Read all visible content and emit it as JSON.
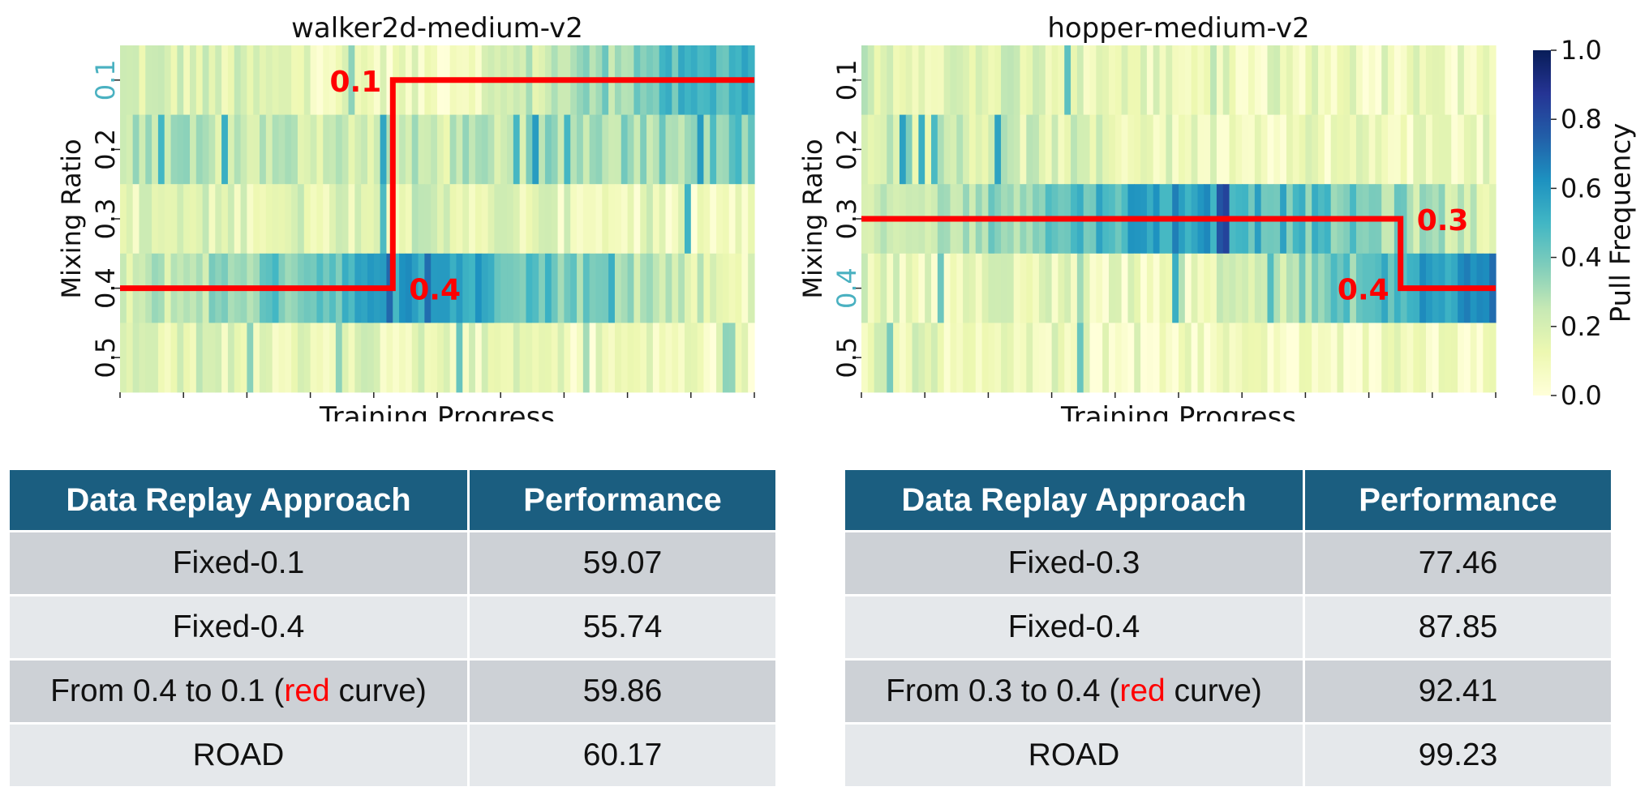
{
  "chart_data": [
    {
      "type": "heatmap",
      "title": "walker2d-medium-v2",
      "xlabel": "Training Progress",
      "ylabel": "Mixing Ratio",
      "rows": [
        "0.1",
        "0.2",
        "0.3",
        "0.4",
        "0.5"
      ],
      "highlighted_rows": [
        "0.1"
      ],
      "n_columns": 100,
      "row_means": [
        0.25,
        0.32,
        0.12,
        0.33,
        0.12
      ],
      "row_profiles": [
        [
          0.2,
          0.08,
          0.55
        ],
        [
          0.25,
          0.22,
          0.4
        ],
        [
          0.15,
          0.18,
          0.05
        ],
        [
          0.2,
          0.6,
          0.12
        ],
        [
          0.18,
          0.13,
          0.08
        ]
      ],
      "overlay_line": {
        "color": "#ff0000",
        "segments": [
          {
            "from": 0.0,
            "to": 0.43,
            "row": "0.4",
            "label": "0.4"
          },
          {
            "from": 0.43,
            "to": 1.0,
            "row": "0.1",
            "label": "0.1"
          }
        ]
      }
    },
    {
      "type": "heatmap",
      "title": "hopper-medium-v2",
      "xlabel": "Training Progress",
      "ylabel": "Mixing Ratio",
      "rows": [
        "0.1",
        "0.2",
        "0.3",
        "0.4",
        "0.5"
      ],
      "highlighted_rows": [
        "0.4"
      ],
      "n_columns": 100,
      "row_means": [
        0.15,
        0.15,
        0.45,
        0.18,
        0.1
      ],
      "row_profiles": [
        [
          0.2,
          0.12,
          0.1
        ],
        [
          0.25,
          0.12,
          0.1
        ],
        [
          0.15,
          0.6,
          0.2
        ],
        [
          0.15,
          0.1,
          0.65
        ],
        [
          0.15,
          0.08,
          0.06
        ]
      ],
      "overlay_line": {
        "color": "#ff0000",
        "segments": [
          {
            "from": 0.0,
            "to": 0.85,
            "row": "0.3",
            "label": "0.3"
          },
          {
            "from": 0.85,
            "to": 1.0,
            "row": "0.4",
            "label": "0.4"
          }
        ]
      }
    }
  ],
  "colorbar": {
    "label": "Pull Frequency",
    "ticks": [
      "0.0",
      "0.2",
      "0.4",
      "0.6",
      "0.8",
      "1.0"
    ],
    "min": 0.0,
    "max": 1.0,
    "colors": [
      "#ffffd9",
      "#edf8b1",
      "#c7e9b4",
      "#7fcdbb",
      "#41b6c4",
      "#1d91c0",
      "#225ea8",
      "#253494",
      "#081d58"
    ]
  },
  "highlight_color": "#4ab1c1",
  "tables": [
    {
      "headers": [
        "Data Replay Approach",
        "Performance"
      ],
      "rows": [
        {
          "approach": "Fixed-0.1",
          "score": "59.07"
        },
        {
          "approach": "Fixed-0.4",
          "score": "55.74"
        },
        {
          "approach_pre": "From 0.4 to 0.1 (",
          "approach_red": "red",
          "approach_post": " curve)",
          "score": "59.86"
        },
        {
          "approach": "ROAD",
          "score": "60.17"
        }
      ]
    },
    {
      "headers": [
        "Data Replay Approach",
        "Performance"
      ],
      "rows": [
        {
          "approach": "Fixed-0.3",
          "score": "77.46"
        },
        {
          "approach": "Fixed-0.4",
          "score": "87.85"
        },
        {
          "approach_pre": "From 0.3 to 0.4 (",
          "approach_red": "red",
          "approach_post": " curve)",
          "score": "92.41"
        },
        {
          "approach": "ROAD",
          "score": "99.23"
        }
      ]
    }
  ]
}
